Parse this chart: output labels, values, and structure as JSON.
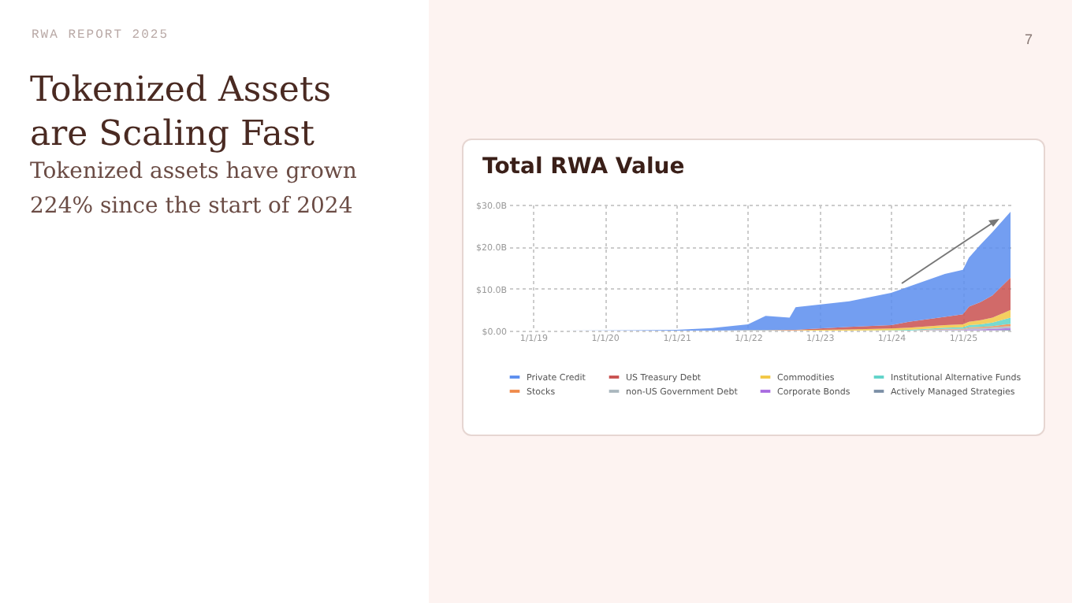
{
  "chart_data": {
    "type": "area",
    "title": "Total RWA Value",
    "stacked": true,
    "annotations": [
      "RWA REPORT 2025",
      "Tokenized Assets are Scaling Fast",
      "Tokenized assets have grown 224% since the start of 2024",
      "7"
    ],
    "x": [
      "2018-09",
      "2019-06",
      "2020-06",
      "2021-01",
      "2021-07",
      "2022-01",
      "2022-04",
      "2022-08",
      "2022-09",
      "2023-06",
      "2024-01",
      "2024-04",
      "2024-10",
      "2025-01",
      "2025-02",
      "2025-04",
      "2025-06",
      "2025-09"
    ],
    "series": [
      {
        "name": "Actively Managed Strategies",
        "color": "#7b8fa6",
        "values": [
          0,
          0,
          0,
          0,
          0,
          0,
          0,
          0,
          0,
          0,
          0,
          0,
          0,
          0,
          0.1,
          0.1,
          0.1,
          0.2
        ]
      },
      {
        "name": "Corporate Bonds",
        "color": "#a86be0",
        "values": [
          0,
          0,
          0,
          0,
          0,
          0,
          0,
          0,
          0,
          0,
          0,
          0,
          0.1,
          0.1,
          0.2,
          0.2,
          0.3,
          0.4
        ]
      },
      {
        "name": "non-US Government Debt",
        "color": "#aab7be",
        "values": [
          0,
          0,
          0,
          0,
          0,
          0,
          0,
          0,
          0,
          0,
          0,
          0,
          0.2,
          0.2,
          0.3,
          0.3,
          0.4,
          0.5
        ]
      },
      {
        "name": "Stocks",
        "color": "#ef8a4a",
        "values": [
          0,
          0,
          0,
          0,
          0,
          0,
          0,
          0,
          0,
          0,
          0,
          0,
          0.1,
          0.1,
          0.2,
          0.3,
          0.3,
          0.5
        ]
      },
      {
        "name": "Institutional Alternative Funds",
        "color": "#5fd3c9",
        "values": [
          0,
          0,
          0,
          0,
          0,
          0,
          0,
          0,
          0,
          0,
          0.1,
          0.2,
          0.3,
          0.4,
          0.5,
          0.6,
          0.8,
          1.5
        ]
      },
      {
        "name": "Commodities",
        "color": "#f2c744",
        "values": [
          0,
          0,
          0,
          0,
          0,
          0.1,
          0.1,
          0.1,
          0.1,
          0.3,
          0.4,
          0.5,
          0.6,
          0.7,
          0.8,
          1.0,
          1.2,
          1.8
        ]
      },
      {
        "name": "US Treasury Debt",
        "color": "#c9504f",
        "values": [
          0,
          0,
          0,
          0,
          0,
          0,
          0,
          0.1,
          0.1,
          0.6,
          0.8,
          1.4,
          2.0,
          2.4,
          3.6,
          4.3,
          5.3,
          7.7
        ]
      },
      {
        "name": "Private Credit",
        "color": "#5b8def",
        "values": [
          0,
          0,
          0.1,
          0.2,
          0.6,
          1.4,
          3.4,
          2.9,
          5.4,
          6.1,
          7.7,
          8.4,
          10.2,
          10.6,
          11.7,
          13.7,
          15.1,
          15.7
        ]
      }
    ],
    "xlim": [
      "2018-09",
      "2025-09"
    ],
    "xticks": [
      {
        "value": "2019-01-01",
        "label": "1/1/19"
      },
      {
        "value": "2020-01-01",
        "label": "1/1/20"
      },
      {
        "value": "2021-01-01",
        "label": "1/1/21"
      },
      {
        "value": "2022-01-01",
        "label": "1/1/22"
      },
      {
        "value": "2023-01-01",
        "label": "1/1/23"
      },
      {
        "value": "2024-01-01",
        "label": "1/1/24"
      },
      {
        "value": "2025-01-01",
        "label": "1/1/25"
      }
    ],
    "ylim": [
      0,
      30
    ],
    "yticks": [
      {
        "value": 0,
        "label": "$0.00"
      },
      {
        "value": 10,
        "label": "$10.0B"
      },
      {
        "value": 20,
        "label": "$20.0B"
      },
      {
        "value": 30,
        "label": "$30.0B"
      }
    ],
    "grid": true,
    "legend": "bottom"
  }
}
